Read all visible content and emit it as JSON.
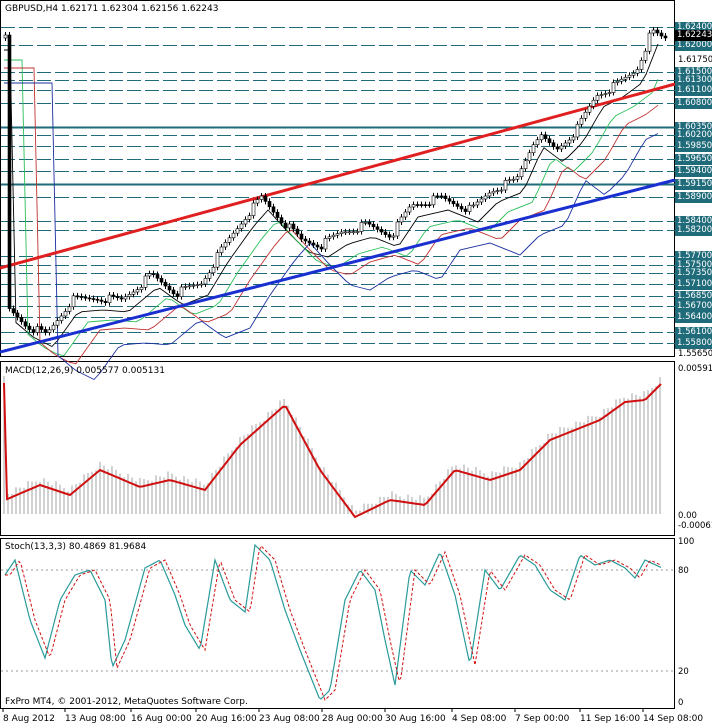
{
  "window": {
    "symbol_line": "GBPUSD,H4  1.62171 1.62304 1.62156 1.62243",
    "copyright": "FxPro MT4, © 2001-2012, MetaQuotes Software Corp."
  },
  "price_axis": {
    "boxed_levels": [
      "1.62400",
      "1.62000",
      "1.61500",
      "1.61300",
      "1.61100",
      "1.60800",
      "1.60350",
      "1.60200",
      "1.59850",
      "1.59650",
      "1.59400",
      "1.59150",
      "1.58900",
      "1.58400",
      "1.58200",
      "1.57700",
      "1.57500",
      "1.57350",
      "1.57100",
      "1.56850",
      "1.56700",
      "1.56400",
      "1.56100",
      "1.55800"
    ],
    "current_price": "1.62243",
    "plain_labels": [
      "1.61750",
      "1.55650"
    ]
  },
  "macd": {
    "title": "MACD(12,26,9) 0.005577 0.005131",
    "axis_top": "0.00591",
    "axis_zero": "0.00",
    "axis_bottom": "-0.00061"
  },
  "stoch": {
    "title": "Stoch(13,3,3) 80.4869 81.9684",
    "levels": [
      "100",
      "80",
      "20",
      "0"
    ]
  },
  "time_axis": [
    "8 Aug 2012",
    "13 Aug 08:00",
    "16 Aug 00:00",
    "20 Aug 16:00",
    "23 Aug 08:00",
    "28 Aug 00:00",
    "30 Aug 16:00",
    "4 Sep 08:00",
    "7 Sep 00:00",
    "11 Sep 16:00",
    "14 Sep 08:00"
  ],
  "colors": {
    "level_lines": "#1f6b7a",
    "upper_trendline": "#e02020",
    "lower_trendline": "#1a2fd0",
    "macd_signal": "#d01010",
    "stoch_main": "#2a9a9a",
    "stoch_signal": "#d01010"
  }
}
